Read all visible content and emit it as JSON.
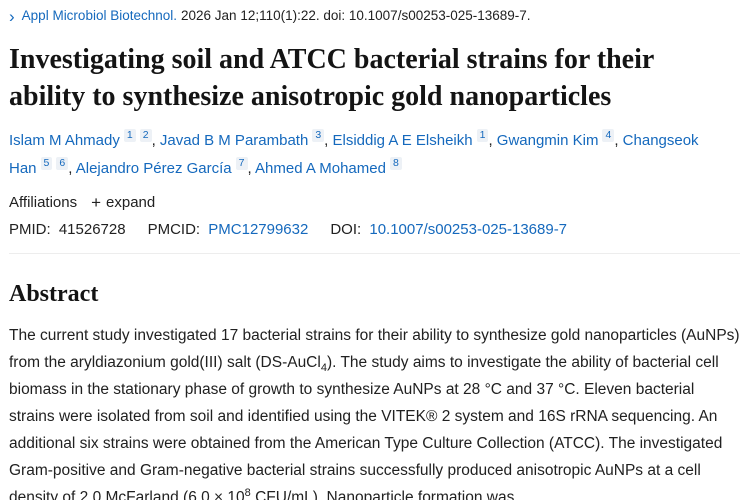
{
  "header": {
    "chevron_icon": "›",
    "journal_link": "Appl Microbiol Biotechnol.",
    "citation_rest": "2026 Jan 12;110(1):22. doi: 10.1007/s00253-025-13689-7."
  },
  "title": "Investigating soil and ATCC bacterial strains for their ability to synthesize anisotropic gold nanoparticles",
  "authors": [
    {
      "name": "Islam M Ahmady",
      "sups": [
        "1",
        "2"
      ]
    },
    {
      "name": "Javad B M Parambath",
      "sups": [
        "3"
      ]
    },
    {
      "name": "Elsiddig A E Elsheikh",
      "sups": [
        "1"
      ]
    },
    {
      "name": "Gwangmin Kim",
      "sups": [
        "4"
      ]
    },
    {
      "name": "Changseok Han",
      "sups": [
        "5",
        "6"
      ]
    },
    {
      "name": "Alejandro Pérez García",
      "sups": [
        "7"
      ]
    },
    {
      "name": "Ahmed A Mohamed",
      "sups": [
        "8"
      ]
    }
  ],
  "affiliations": {
    "label": "Affiliations",
    "plus_icon": "+",
    "expand_label": "expand"
  },
  "identifiers": {
    "pmid_label": "PMID:",
    "pmid_value": "41526728",
    "pmcid_label": "PMCID:",
    "pmcid_value": "PMC12799632",
    "doi_label": "DOI:",
    "doi_value": "10.1007/s00253-025-13689-7"
  },
  "abstract": {
    "heading": "Abstract",
    "segments": [
      {
        "text": "The current study investigated 17 bacterial strains for their ability to synthesize gold nanoparticles (AuNPs) from the aryldiazonium gold(III) salt (DS-AuCl"
      },
      {
        "text": "4",
        "style": "sub"
      },
      {
        "text": "). The study aims to investigate the ability of bacterial cell biomass in the stationary phase of growth to synthesize AuNPs at 28 °C and 37 °C. Eleven bacterial strains were isolated from soil and identified using the VITEK® 2 system and 16S rRNA sequencing. An additional six strains were obtained from the American Type Culture Collection (ATCC). The investigated Gram-positive and Gram-negative bacterial strains successfully produced anisotropic AuNPs at a cell density of 2.0 McFarland (6.0 × 10"
      },
      {
        "text": "8",
        "style": "sup"
      },
      {
        "text": " CFU/mL). Nanoparticle formation was"
      }
    ]
  },
  "colors": {
    "link_blue": "#1569bd",
    "text_dark": "#212121",
    "chip_bg": "#edf1f6"
  }
}
